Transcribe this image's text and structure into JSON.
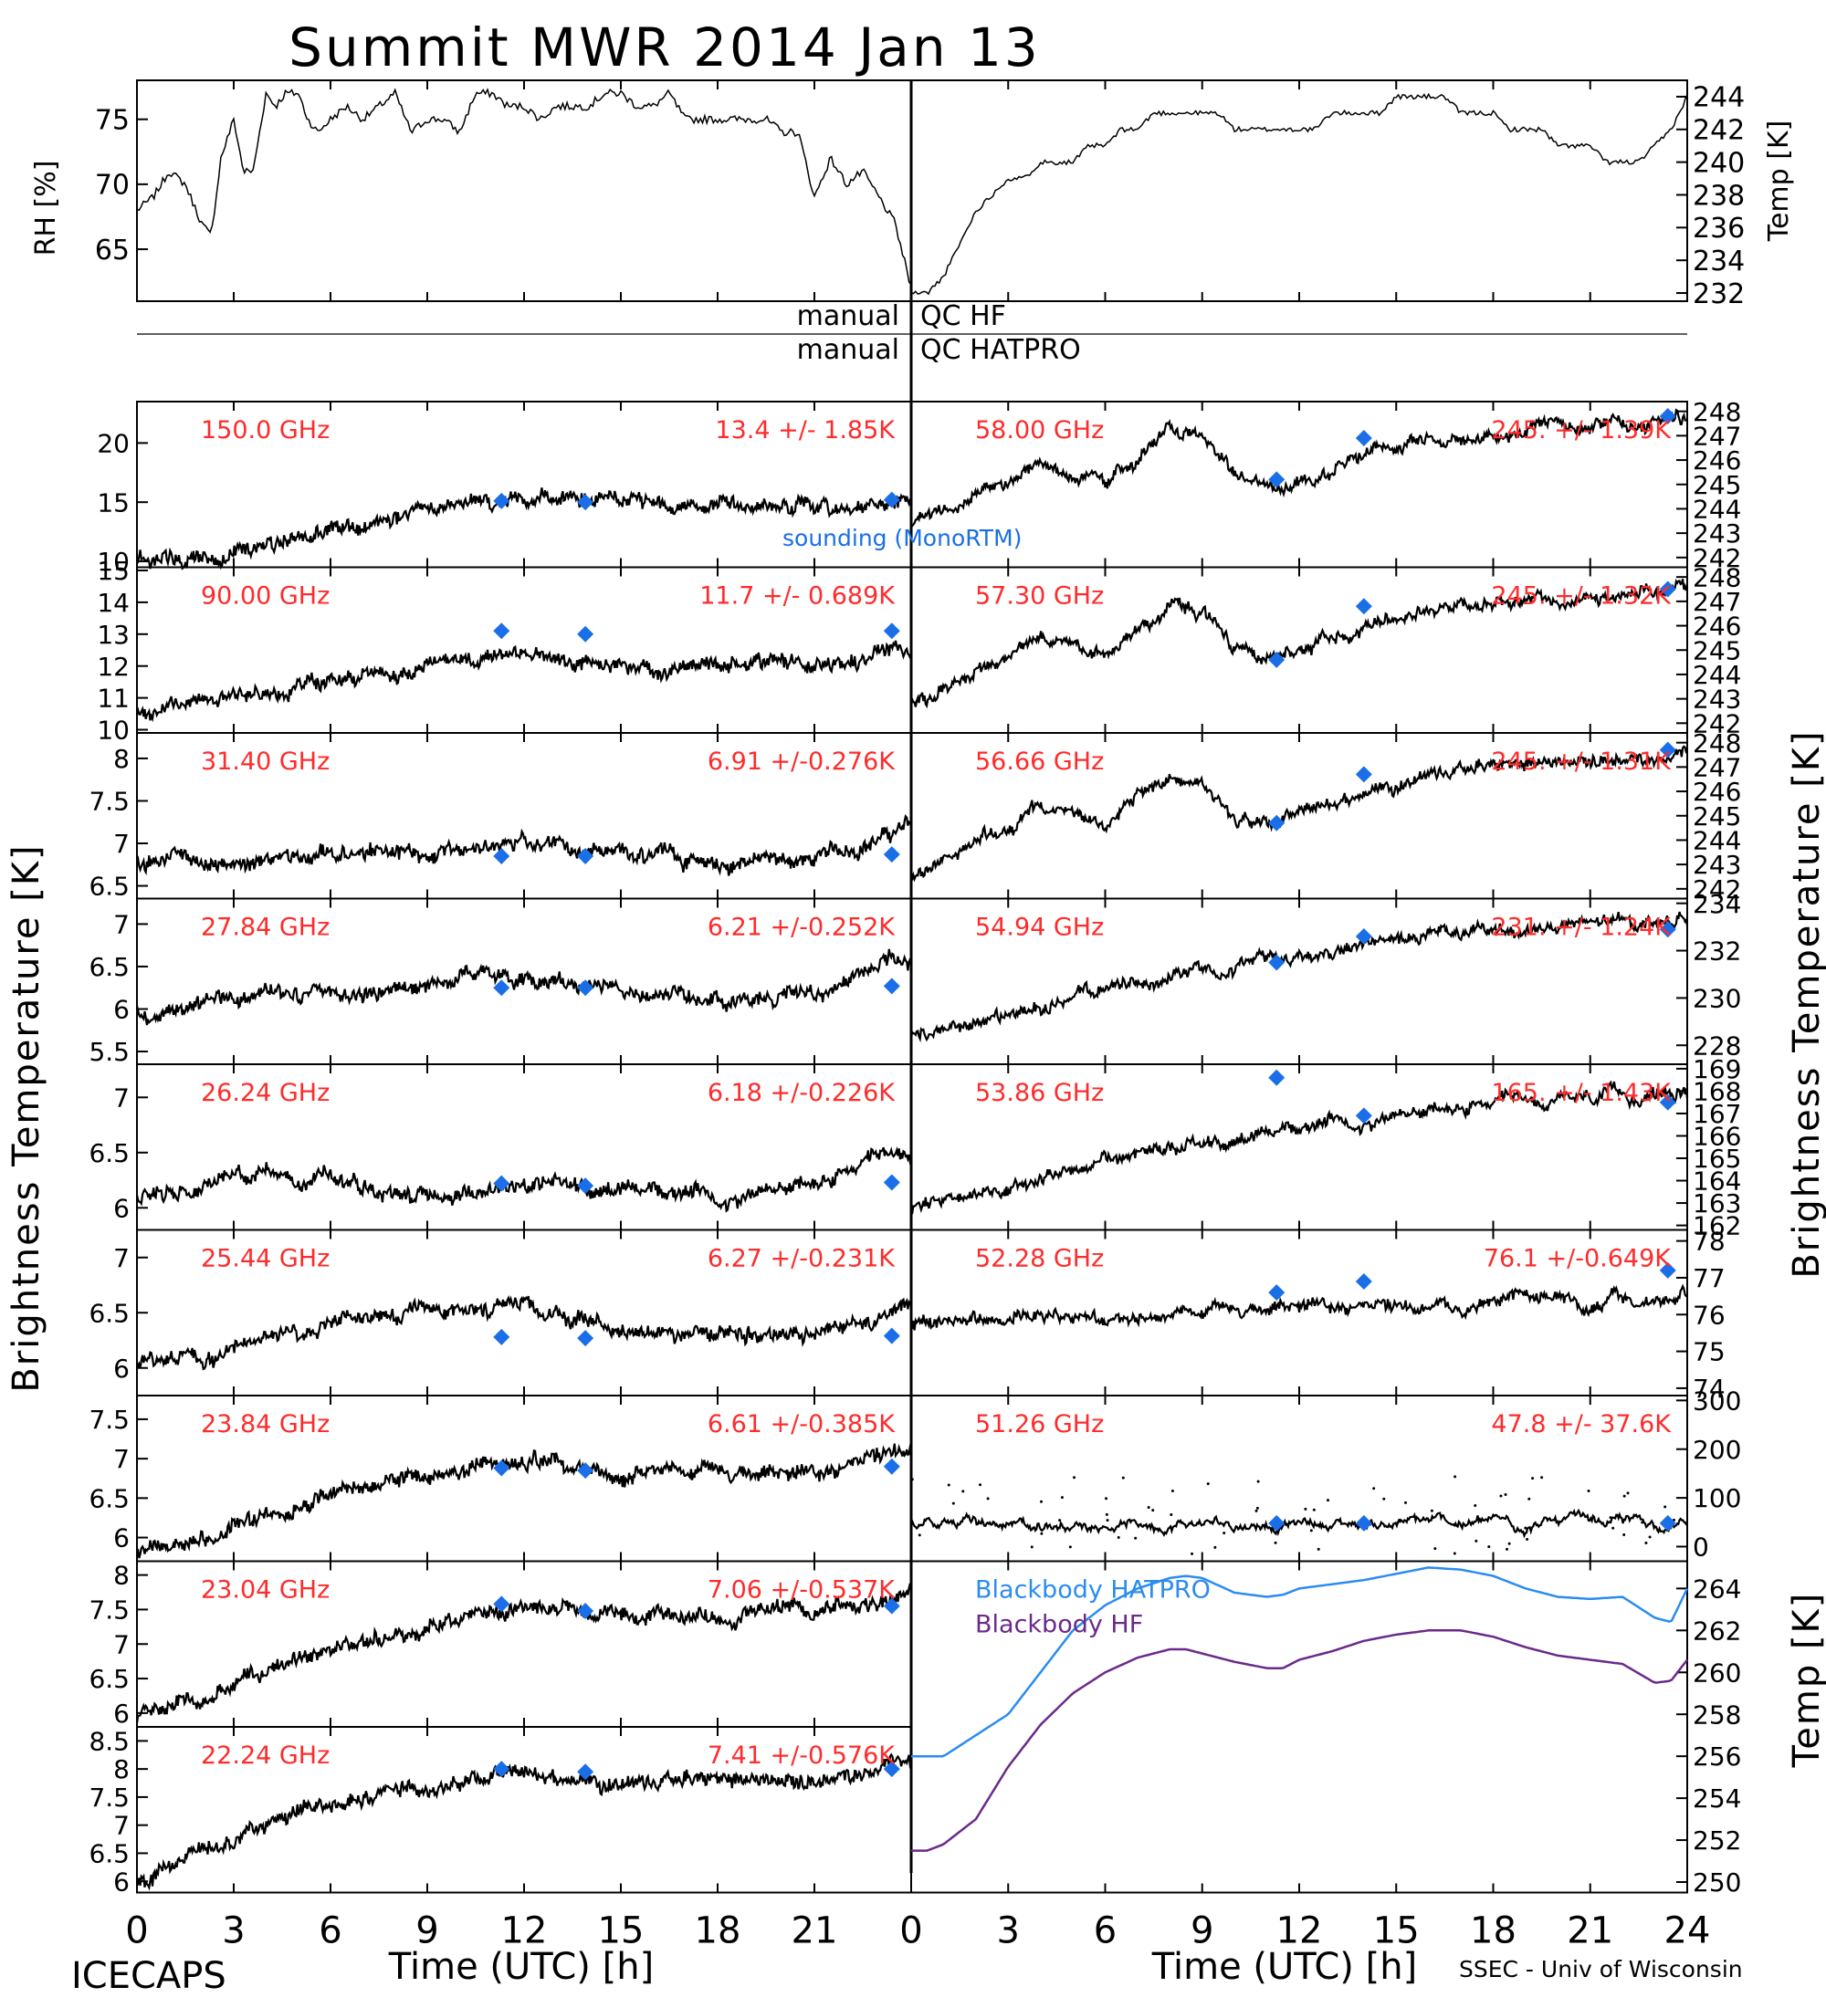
{
  "title": "Summit MWR 2014 Jan 13",
  "footer": {
    "left": "ICECAPS",
    "right": "SSEC - Univ of Wisconsin"
  },
  "axis_labels": {
    "time_left": "Time (UTC) [h]",
    "time_right": "Time (UTC) [h]",
    "bt_left": "Brightness Temperature [K]",
    "bt_right": "Brightness Temperature [K]",
    "rh": "RH [%]",
    "temp_top": "Temp [K]",
    "temp_bottom": "Temp [K]"
  },
  "qc": {
    "row1_left": "manual",
    "row1_right": "QC HF",
    "row2_left": "manual",
    "row2_right": "QC HATPRO"
  },
  "colors": {
    "label_red": "#ff2b2b",
    "marker_blue": "#1a6fe8",
    "hatpro_line": "#2b8cf0",
    "hf_line": "#6a2a8a",
    "trace": "#000000"
  },
  "chart_data": [
    {
      "id": "rh",
      "type": "line",
      "ylabel": "RH [%]",
      "xlim": [
        0,
        24
      ],
      "ylim": [
        61,
        78
      ],
      "yticks": [
        65,
        70,
        75
      ],
      "x": [
        0,
        0.5,
        1,
        1.5,
        2,
        2.3,
        2.6,
        3,
        3.3,
        3.6,
        4,
        4.3,
        4.6,
        5,
        5.3,
        5.6,
        6,
        6.5,
        7,
        7.5,
        8,
        8.5,
        9,
        9.5,
        10,
        10.5,
        11,
        11.5,
        12,
        12.5,
        13,
        13.5,
        14,
        14.5,
        15,
        15.5,
        16,
        16.5,
        17,
        17.5,
        18,
        18.5,
        19,
        19.5,
        20,
        20.5,
        21,
        21.5,
        22,
        22.5,
        23,
        23.5,
        24
      ],
      "y": [
        68,
        69,
        71,
        70,
        67,
        66,
        72,
        75,
        71,
        71,
        77,
        76,
        77,
        77,
        75,
        74,
        75,
        76,
        75,
        76,
        77,
        74,
        75,
        75,
        74,
        77,
        77,
        76,
        76,
        75,
        76,
        76,
        76,
        77,
        77,
        76,
        76,
        77,
        75,
        75,
        75,
        75,
        75,
        75,
        74,
        74,
        69,
        72,
        70,
        71,
        69,
        67,
        62
      ]
    },
    {
      "id": "temp_top",
      "type": "line",
      "ylabel": "Temp [K]",
      "xlim": [
        0,
        24
      ],
      "ylim": [
        231.5,
        245
      ],
      "yticks": [
        232,
        234,
        236,
        238,
        240,
        242,
        244
      ],
      "x": [
        0,
        0.5,
        1,
        1.5,
        2,
        2.5,
        3,
        3.5,
        4,
        4.5,
        5,
        5.5,
        6,
        6.5,
        7,
        7.5,
        8,
        8.5,
        9,
        9.5,
        10,
        10.5,
        11,
        11.5,
        12,
        12.5,
        13,
        13.5,
        14,
        14.5,
        15,
        15.5,
        16,
        16.5,
        17,
        17.5,
        18,
        18.5,
        19,
        19.5,
        20,
        20.5,
        21,
        21.5,
        22,
        22.5,
        23,
        23.5,
        24
      ],
      "y": [
        232,
        232,
        233,
        235,
        237,
        238,
        239,
        239,
        240,
        240,
        240,
        241,
        241,
        242,
        242,
        243,
        243,
        243,
        243,
        243,
        242,
        242,
        242,
        242,
        242,
        242,
        243,
        243,
        243,
        243,
        244,
        244,
        244,
        244,
        243,
        243,
        243,
        242,
        242,
        242,
        241,
        241,
        241,
        240,
        240,
        240,
        241,
        242,
        244
      ]
    },
    {
      "id": "ch150",
      "type": "scatter",
      "panel": "left",
      "row": 0,
      "freq": "150.0 GHz",
      "stats": "13.4 +/-  1.85K",
      "ylim": [
        9.5,
        23.5
      ],
      "yticks": [
        10,
        15,
        20
      ],
      "x": [
        0,
        3,
        6,
        9,
        12,
        15,
        18,
        21,
        24
      ],
      "y": [
        10,
        11,
        12.5,
        14,
        15.5,
        15,
        15,
        14.5,
        15
      ],
      "sounding_x": [
        11.3,
        13.9,
        23.4
      ],
      "sounding_y": [
        15.1,
        15.0,
        15.2
      ]
    },
    {
      "id": "ch90",
      "type": "scatter",
      "panel": "left",
      "row": 1,
      "freq": "90.00 GHz",
      "stats": "11.7 +/- 0.689K",
      "ylim": [
        9.9,
        15.1
      ],
      "yticks": [
        10,
        11,
        12,
        13,
        14,
        15
      ],
      "x": [
        0,
        3,
        6,
        9,
        12,
        15,
        18,
        21,
        24
      ],
      "y": [
        10.5,
        11,
        11.5,
        11.8,
        12.5,
        12,
        12,
        12,
        12.5
      ],
      "sounding_x": [
        11.3,
        13.9,
        23.4
      ],
      "sounding_y": [
        13.1,
        13.0,
        13.1
      ]
    },
    {
      "id": "ch31",
      "type": "scatter",
      "panel": "left",
      "row": 2,
      "freq": "31.40 GHz",
      "stats": "6.91 +/-0.276K",
      "ylim": [
        6.35,
        8.3
      ],
      "yticks": [
        6.5,
        7.0,
        7.5,
        8.0
      ],
      "x": [
        0,
        3,
        6,
        9,
        12,
        15,
        18,
        21,
        24
      ],
      "y": [
        6.8,
        6.8,
        6.9,
        6.9,
        7.0,
        6.9,
        6.8,
        6.8,
        7.2
      ],
      "sounding_x": [
        11.3,
        13.9,
        23.4
      ],
      "sounding_y": [
        6.85,
        6.85,
        6.87
      ]
    },
    {
      "id": "ch2784",
      "type": "scatter",
      "panel": "left",
      "row": 3,
      "freq": "27.84 GHz",
      "stats": "6.21 +/-0.252K",
      "ylim": [
        5.35,
        7.3
      ],
      "yticks": [
        5.5,
        6.0,
        6.5,
        7.0
      ],
      "x": [
        0,
        3,
        6,
        9,
        12,
        15,
        18,
        21,
        24
      ],
      "y": [
        6.0,
        6.1,
        6.2,
        6.3,
        6.4,
        6.2,
        6.2,
        6.2,
        6.6
      ],
      "sounding_x": [
        11.3,
        13.9,
        23.4
      ],
      "sounding_y": [
        6.25,
        6.25,
        6.27
      ]
    },
    {
      "id": "ch2624",
      "type": "scatter",
      "panel": "left",
      "row": 4,
      "freq": "26.24 GHz",
      "stats": "6.18 +/-0.226K",
      "ylim": [
        5.8,
        7.3
      ],
      "yticks": [
        6.0,
        6.5,
        7.0
      ],
      "x": [
        0,
        3,
        6,
        9,
        12,
        15,
        18,
        21,
        24
      ],
      "y": [
        6.1,
        6.3,
        6.3,
        6.1,
        6.2,
        6.2,
        6.1,
        6.2,
        6.5
      ],
      "sounding_x": [
        11.3,
        13.9,
        23.4
      ],
      "sounding_y": [
        6.22,
        6.2,
        6.23
      ]
    },
    {
      "id": "ch2544",
      "type": "scatter",
      "panel": "left",
      "row": 5,
      "freq": "25.44 GHz",
      "stats": "6.27 +/-0.231K",
      "ylim": [
        5.75,
        7.25
      ],
      "yticks": [
        6.0,
        6.5,
        7.0
      ],
      "x": [
        0,
        3,
        6,
        9,
        12,
        15,
        18,
        21,
        24
      ],
      "y": [
        6.0,
        6.2,
        6.4,
        6.5,
        6.6,
        6.3,
        6.3,
        6.3,
        6.6
      ],
      "sounding_x": [
        11.3,
        13.9,
        23.4
      ],
      "sounding_y": [
        6.28,
        6.27,
        6.29
      ]
    },
    {
      "id": "ch2384",
      "type": "scatter",
      "panel": "left",
      "row": 6,
      "freq": "23.84 GHz",
      "stats": "6.61 +/-0.385K",
      "ylim": [
        5.7,
        7.8
      ],
      "yticks": [
        6.0,
        6.5,
        7.0,
        7.5
      ],
      "x": [
        0,
        3,
        6,
        9,
        12,
        15,
        18,
        21,
        24
      ],
      "y": [
        5.8,
        6.1,
        6.6,
        6.8,
        7.0,
        6.8,
        6.8,
        6.8,
        7.2
      ],
      "sounding_x": [
        11.3,
        13.9,
        23.4
      ],
      "sounding_y": [
        6.88,
        6.85,
        6.9
      ]
    },
    {
      "id": "ch2304",
      "type": "scatter",
      "panel": "left",
      "row": 7,
      "freq": "23.04 GHz",
      "stats": "7.06 +/-0.537K",
      "ylim": [
        5.8,
        8.2
      ],
      "yticks": [
        6.0,
        6.5,
        7.0,
        7.5,
        8.0
      ],
      "x": [
        0,
        3,
        6,
        9,
        12,
        15,
        18,
        21,
        24
      ],
      "y": [
        5.9,
        6.4,
        7.0,
        7.2,
        7.5,
        7.4,
        7.4,
        7.5,
        7.7
      ],
      "sounding_x": [
        11.3,
        13.9,
        23.4
      ],
      "sounding_y": [
        7.58,
        7.48,
        7.55
      ]
    },
    {
      "id": "ch2224",
      "type": "scatter",
      "panel": "left",
      "row": 8,
      "freq": "22.24 GHz",
      "stats": "7.41 +/-0.576K",
      "ylim": [
        5.8,
        8.75
      ],
      "yticks": [
        6.0,
        6.5,
        7.0,
        7.5,
        8.0,
        8.5
      ],
      "x": [
        0,
        3,
        6,
        9,
        12,
        15,
        18,
        21,
        24
      ],
      "y": [
        6.0,
        6.8,
        7.4,
        7.7,
        7.9,
        7.8,
        7.8,
        7.8,
        8.2
      ],
      "sounding_x": [
        11.3,
        13.9,
        23.4
      ],
      "sounding_y": [
        8.0,
        7.95,
        8.0
      ]
    },
    {
      "id": "ch5800",
      "type": "scatter",
      "panel": "right",
      "row": 0,
      "freq": "58.00 GHz",
      "stats": "245. +/- 1.39K",
      "ylim": [
        241.6,
        248.4
      ],
      "yticks": [
        242,
        243,
        244,
        245,
        246,
        247,
        248
      ],
      "x": [
        0,
        2,
        4,
        6,
        8,
        9,
        10,
        11,
        12,
        14,
        16,
        18,
        20,
        22,
        24
      ],
      "y": [
        243.5,
        244.5,
        245.8,
        245.0,
        247.3,
        247.0,
        245.5,
        245.0,
        245.0,
        246.3,
        247.0,
        247.0,
        247.3,
        247.5,
        247.8
      ],
      "sounding_x": [
        11.3,
        14.0,
        23.4
      ],
      "sounding_y": [
        245.2,
        246.9,
        247.8
      ]
    },
    {
      "id": "ch5730",
      "type": "scatter",
      "panel": "right",
      "row": 1,
      "freq": "57.30 GHz",
      "stats": "245. +/- 1.32K",
      "ylim": [
        241.6,
        248.4
      ],
      "yticks": [
        242,
        243,
        244,
        245,
        246,
        247,
        248
      ],
      "x": [
        0,
        2,
        4,
        6,
        8,
        9,
        10,
        11,
        12,
        14,
        16,
        18,
        20,
        22,
        24
      ],
      "y": [
        242.8,
        244.0,
        245.5,
        245.0,
        246.8,
        246.5,
        245.2,
        244.6,
        245.0,
        246.0,
        246.8,
        247.0,
        247.2,
        247.3,
        247.5
      ],
      "sounding_x": [
        11.3,
        14.0,
        23.4
      ],
      "sounding_y": [
        244.6,
        246.8,
        247.5
      ]
    },
    {
      "id": "ch5666",
      "type": "scatter",
      "panel": "right",
      "row": 2,
      "freq": "56.66 GHz",
      "stats": "245. +/- 1.31K",
      "ylim": [
        241.6,
        248.4
      ],
      "yticks": [
        242,
        243,
        244,
        245,
        246,
        247,
        248
      ],
      "x": [
        0,
        2,
        4,
        6,
        8,
        9,
        10,
        11,
        12,
        14,
        16,
        18,
        20,
        22,
        24
      ],
      "y": [
        242.5,
        243.8,
        245.3,
        244.8,
        246.8,
        246.2,
        245.2,
        244.6,
        245.0,
        246.0,
        246.8,
        247.0,
        247.2,
        247.4,
        247.6
      ],
      "sounding_x": [
        11.3,
        14.0,
        23.4
      ],
      "sounding_y": [
        244.7,
        246.7,
        247.7
      ]
    },
    {
      "id": "ch5494",
      "type": "scatter",
      "panel": "right",
      "row": 3,
      "freq": "54.94 GHz",
      "stats": "231. +/- 1.24K",
      "ylim": [
        227.2,
        234.2
      ],
      "yticks": [
        228,
        230,
        232,
        234
      ],
      "x": [
        0,
        3,
        6,
        9,
        12,
        15,
        18,
        21,
        24
      ],
      "y": [
        228.3,
        229.2,
        230.3,
        231.3,
        231.8,
        232.4,
        232.8,
        233.1,
        233.3
      ],
      "sounding_x": [
        11.3,
        14.0,
        23.4
      ],
      "sounding_y": [
        231.5,
        232.6,
        232.9
      ]
    },
    {
      "id": "ch5386",
      "type": "scatter",
      "panel": "right",
      "row": 4,
      "freq": "53.86 GHz",
      "stats": "165. +/- 1.43K",
      "ylim": [
        161.8,
        169.2
      ],
      "yticks": [
        162,
        163,
        164,
        165,
        166,
        167,
        168,
        169
      ],
      "x": [
        0,
        3,
        6,
        9,
        12,
        15,
        18,
        21,
        24
      ],
      "y": [
        162.6,
        163.8,
        164.9,
        165.8,
        166.4,
        166.9,
        167.3,
        167.6,
        168.0
      ],
      "sounding_x": [
        11.3,
        14.0,
        23.4
      ],
      "sounding_y": [
        168.6,
        166.9,
        167.5
      ]
    },
    {
      "id": "ch5228",
      "type": "scatter",
      "panel": "right",
      "row": 5,
      "freq": "52.28 GHz",
      "stats": "76.1 +/-0.649K",
      "ylim": [
        73.8,
        78.3
      ],
      "yticks": [
        74,
        75,
        76,
        77,
        78
      ],
      "x": [
        0,
        3,
        6,
        9,
        12,
        15,
        18,
        21,
        24
      ],
      "y": [
        75.7,
        75.8,
        75.9,
        76.0,
        76.2,
        76.3,
        76.3,
        76.4,
        76.6
      ],
      "sounding_x": [
        11.3,
        14.0,
        23.4
      ],
      "sounding_y": [
        76.6,
        76.9,
        77.2
      ]
    },
    {
      "id": "ch5126",
      "type": "scatter",
      "panel": "right",
      "row": 6,
      "freq": "51.26 GHz",
      "stats": "47.8 +/- 37.6K",
      "ylim": [
        -30,
        310
      ],
      "yticks": [
        0,
        100,
        200,
        300
      ],
      "x": [
        0,
        3,
        6,
        9,
        12,
        15,
        18,
        21,
        24
      ],
      "y": [
        47,
        47,
        47,
        47,
        48,
        48,
        48,
        48,
        48
      ],
      "sounding_x": [
        11.3,
        14.0,
        23.4
      ],
      "sounding_y": [
        48,
        48,
        48
      ]
    },
    {
      "id": "blackbody",
      "type": "line",
      "panel": "right",
      "rows": [
        7,
        8
      ],
      "ylabel": "Temp [K]",
      "ylim": [
        249.5,
        265.3
      ],
      "yticks": [
        250,
        252,
        254,
        256,
        258,
        260,
        262,
        264
      ],
      "x": [
        0,
        0.5,
        1,
        2,
        3,
        4,
        5,
        6,
        7,
        8,
        8.5,
        9,
        10,
        11,
        11.5,
        12,
        13,
        14,
        15,
        16,
        17,
        18,
        19,
        20,
        21,
        22,
        23,
        23.5,
        24
      ],
      "series": [
        {
          "name": "Blackbody HATPRO",
          "values": [
            256.0,
            256.0,
            256.0,
            257.0,
            258.0,
            260.0,
            262.0,
            263.2,
            264.0,
            264.5,
            264.6,
            264.5,
            263.8,
            263.6,
            263.7,
            264.0,
            264.2,
            264.4,
            264.7,
            265.0,
            264.9,
            264.6,
            264.0,
            263.6,
            263.5,
            263.6,
            262.6,
            262.4,
            264.0
          ]
        },
        {
          "name": "Blackbody HF",
          "values": [
            251.5,
            251.5,
            251.8,
            253.0,
            255.5,
            257.5,
            259.0,
            260.0,
            260.7,
            261.1,
            261.1,
            260.9,
            260.5,
            260.2,
            260.2,
            260.6,
            261.0,
            261.5,
            261.8,
            262.0,
            262.0,
            261.7,
            261.2,
            260.8,
            260.6,
            260.4,
            259.5,
            259.6,
            260.6
          ]
        }
      ]
    }
  ],
  "time_ticks": {
    "left": [
      "0",
      "3",
      "6",
      "9",
      "12",
      "15",
      "18",
      "21"
    ],
    "right": [
      "0",
      "3",
      "6",
      "9",
      "12",
      "15",
      "18",
      "21",
      "24"
    ]
  },
  "sounding_label": "sounding (MonoRTM)"
}
